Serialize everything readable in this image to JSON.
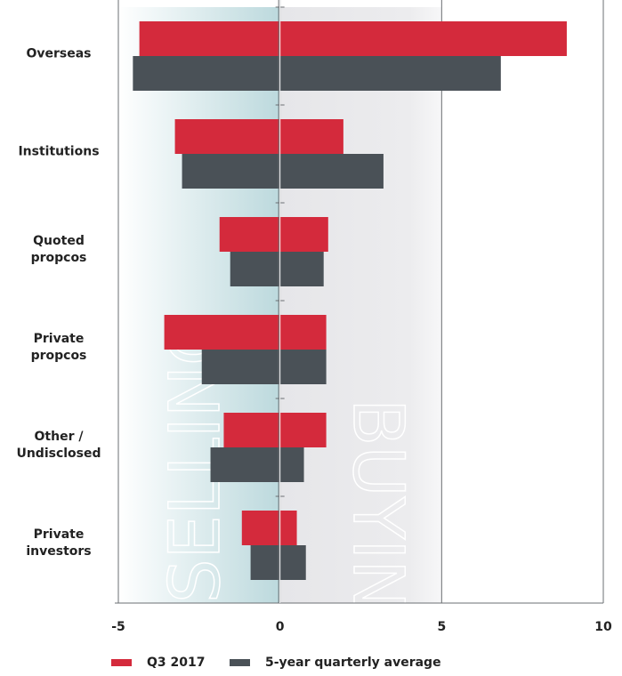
{
  "chart_data": {
    "type": "bar",
    "categories": [
      "Overseas",
      "Institutions",
      "Quoted\npropcos",
      "Private\npropcos",
      "Other /\nUndisclosed",
      "Private\ninvestors"
    ],
    "series": [
      {
        "name": "Q3 2017",
        "color": "#d42a3c",
        "selling": [
          -4.35,
          -3.25,
          -1.87,
          -3.58,
          -1.74,
          -1.18
        ],
        "buying": [
          8.87,
          1.96,
          1.49,
          1.43,
          1.43,
          0.52
        ]
      },
      {
        "name": "5-year quarterly average",
        "color": "#4a5157",
        "selling": [
          -4.55,
          -3.03,
          -1.54,
          -2.42,
          -2.15,
          -0.91
        ],
        "buying": [
          6.83,
          3.2,
          1.35,
          1.43,
          0.74,
          0.8
        ]
      }
    ],
    "annotations": [
      "SELLING",
      "BUYING"
    ],
    "xlim": [
      -5,
      10
    ],
    "xticks": [
      -5,
      0,
      5,
      10
    ],
    "grid": true
  }
}
